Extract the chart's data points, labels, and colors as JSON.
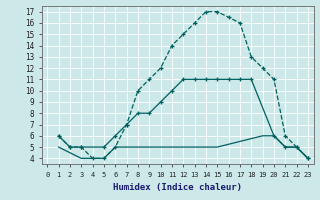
{
  "xlabel": "Humidex (Indice chaleur)",
  "bg_color": "#cce8e8",
  "grid_color": "#b8d8d8",
  "line_color": "#006060",
  "xlim": [
    -0.5,
    23.5
  ],
  "ylim": [
    3.5,
    17.5
  ],
  "xticks": [
    0,
    1,
    2,
    3,
    4,
    5,
    6,
    7,
    8,
    9,
    10,
    11,
    12,
    13,
    14,
    15,
    16,
    17,
    18,
    19,
    20,
    21,
    22,
    23
  ],
  "yticks": [
    4,
    5,
    6,
    7,
    8,
    9,
    10,
    11,
    12,
    13,
    14,
    15,
    16,
    17
  ],
  "line1_x": [
    1,
    2,
    3,
    4,
    5,
    6,
    7,
    8,
    9,
    10,
    11,
    12,
    13,
    14,
    15,
    16,
    17,
    18,
    19,
    20,
    21,
    22,
    23
  ],
  "line1_y": [
    6,
    5,
    5,
    4,
    4,
    5,
    7,
    10,
    11,
    12,
    14,
    15,
    16,
    17,
    17,
    16.5,
    16,
    13,
    12,
    11,
    6,
    5,
    4
  ],
  "line2_x": [
    1,
    2,
    3,
    5,
    6,
    7,
    8,
    9,
    10,
    11,
    12,
    13,
    14,
    15,
    16,
    17,
    18,
    20,
    21,
    22,
    23
  ],
  "line2_y": [
    6,
    5,
    5,
    5,
    6,
    7,
    8,
    8,
    9,
    10,
    11,
    11,
    11,
    11,
    11,
    11,
    11,
    6,
    5,
    5,
    4
  ],
  "line3_x": [
    1,
    3,
    4,
    5,
    6,
    10,
    15,
    19,
    20,
    21,
    22,
    23
  ],
  "line3_y": [
    5,
    4,
    4,
    4,
    5,
    5,
    5,
    6,
    6,
    5,
    5,
    4
  ]
}
